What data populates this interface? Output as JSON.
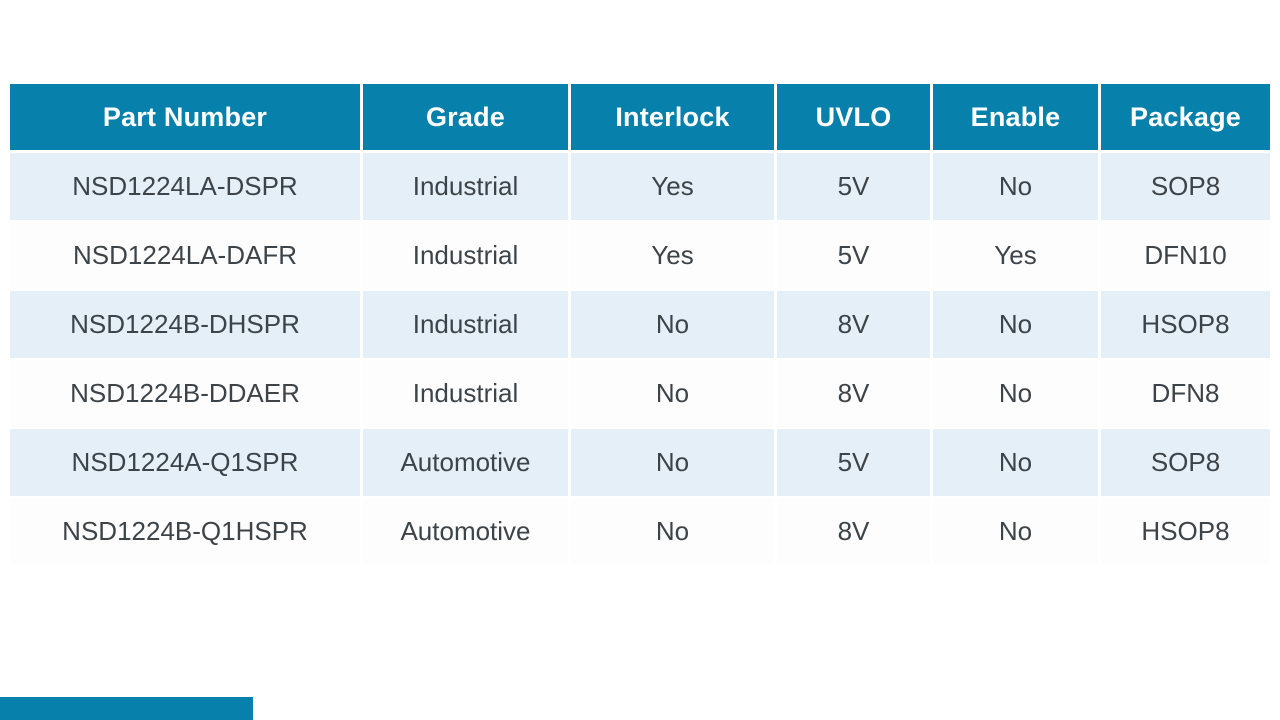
{
  "table": {
    "columns": [
      "Part Number",
      "Grade",
      "Interlock",
      "UVLO",
      "Enable",
      "Package"
    ],
    "rows": [
      [
        "NSD1224LA-DSPR",
        "Industrial",
        "Yes",
        "5V",
        "No",
        "SOP8"
      ],
      [
        "NSD1224LA-DAFR",
        "Industrial",
        "Yes",
        "5V",
        "Yes",
        "DFN10"
      ],
      [
        "NSD1224B-DHSPR",
        "Industrial",
        "No",
        "8V",
        "No",
        "HSOP8"
      ],
      [
        "NSD1224B-DDAER",
        "Industrial",
        "No",
        "8V",
        "No",
        "DFN8"
      ],
      [
        "NSD1224A-Q1SPR",
        "Automotive",
        "No",
        "5V",
        "No",
        "SOP8"
      ],
      [
        "NSD1224B-Q1HSPR",
        "Automotive",
        "No",
        "8V",
        "No",
        "HSOP8"
      ]
    ]
  },
  "chart_data": {
    "type": "table",
    "columns": [
      "Part Number",
      "Grade",
      "Interlock",
      "UVLO",
      "Enable",
      "Package"
    ],
    "rows": [
      [
        "NSD1224LA-DSPR",
        "Industrial",
        "Yes",
        "5V",
        "No",
        "SOP8"
      ],
      [
        "NSD1224LA-DAFR",
        "Industrial",
        "Yes",
        "5V",
        "Yes",
        "DFN10"
      ],
      [
        "NSD1224B-DHSPR",
        "Industrial",
        "No",
        "8V",
        "No",
        "HSOP8"
      ],
      [
        "NSD1224B-DDAER",
        "Industrial",
        "No",
        "8V",
        "No",
        "DFN8"
      ],
      [
        "NSD1224A-Q1SPR",
        "Automotive",
        "No",
        "5V",
        "No",
        "SOP8"
      ],
      [
        "NSD1224B-Q1HSPR",
        "Automotive",
        "No",
        "8V",
        "No",
        "HSOP8"
      ]
    ]
  },
  "colors": {
    "page_bg": "#ffffff",
    "header_bg": "#0781ac",
    "header_text": "#ffffff",
    "row_alt_bg": "#e4eff7",
    "row_bg": "#fdfdfd",
    "cell_text": "#3d4449",
    "accent_bar": "#0781ac"
  }
}
